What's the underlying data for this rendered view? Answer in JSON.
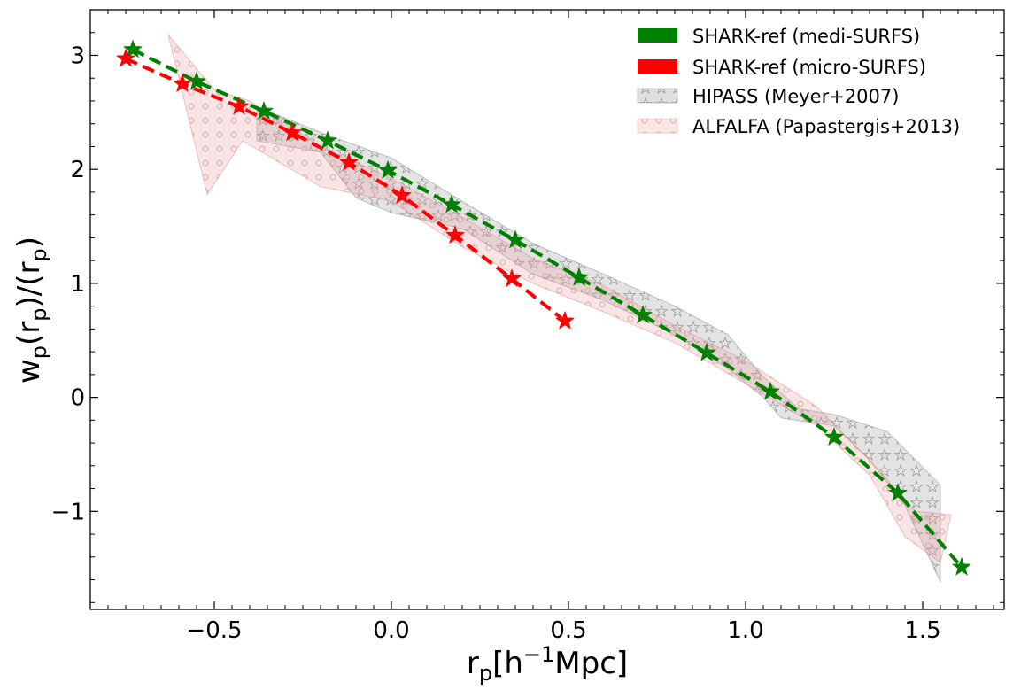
{
  "chart_data": {
    "type": "line",
    "xlabel": {
      "base": "r",
      "sub": "p",
      "open": "[h",
      "sup": "−1",
      "close": "Mpc]"
    },
    "ylabel": {
      "base": "w",
      "sub1": "p",
      "mid": "(r",
      "sub2": "p",
      "mid2": ")/(r",
      "sub3": "p",
      "close": ")"
    },
    "xlim": [
      -0.85,
      1.73
    ],
    "ylim": [
      -1.86,
      3.4
    ],
    "x_ticks": [
      -0.5,
      0.0,
      0.5,
      1.0,
      1.5
    ],
    "x_tick_labels": [
      "−0.5",
      "0.0",
      "0.5",
      "1.0",
      "1.5"
    ],
    "y_ticks": [
      -1,
      0,
      1,
      2,
      3
    ],
    "y_tick_labels": [
      "−1",
      "0",
      "1",
      "2",
      "3"
    ],
    "grid": false,
    "legend_position": "top-right",
    "legend": [
      {
        "label": "SHARK-ref (medi-SURFS)",
        "kind": "solid",
        "color": "#008000"
      },
      {
        "label": "SHARK-ref (micro-SURFS)",
        "kind": "solid",
        "color": "#ff0000"
      },
      {
        "label": "HIPASS (Meyer+2007)",
        "kind": "hatched",
        "color": "#808080"
      },
      {
        "label": "ALFALFA (Papastergis+2013)",
        "kind": "hatched",
        "color": "#e8a0a0"
      }
    ],
    "series": [
      {
        "kind": "line",
        "color": "#008000",
        "marker": "star",
        "x": [
          -0.73,
          -0.55,
          -0.36,
          -0.18,
          -0.01,
          0.17,
          0.35,
          0.53,
          0.71,
          0.89,
          1.07,
          1.25,
          1.43,
          1.61
        ],
        "y": [
          3.05,
          2.77,
          2.51,
          2.25,
          1.99,
          1.69,
          1.38,
          1.05,
          0.72,
          0.39,
          0.05,
          -0.35,
          -0.84,
          -1.49
        ]
      },
      {
        "kind": "line",
        "color": "#ff0000",
        "marker": "star",
        "x": [
          -0.75,
          -0.59,
          -0.43,
          -0.28,
          -0.12,
          0.03,
          0.18,
          0.34,
          0.49
        ],
        "y": [
          2.97,
          2.75,
          2.55,
          2.32,
          2.06,
          1.77,
          1.42,
          1.04,
          0.67
        ]
      },
      {
        "kind": "band",
        "color": "#808080",
        "upper": [
          [
            -0.38,
            2.55
          ],
          [
            -0.18,
            2.3
          ],
          [
            0.0,
            2.1
          ],
          [
            0.2,
            1.72
          ],
          [
            0.4,
            1.35
          ],
          [
            0.6,
            1.08
          ],
          [
            0.8,
            0.8
          ],
          [
            0.95,
            0.55
          ],
          [
            1.05,
            0.18
          ],
          [
            1.15,
            -0.1
          ],
          [
            1.25,
            -0.15
          ],
          [
            1.4,
            -0.3
          ],
          [
            1.55,
            -0.77
          ]
        ],
        "lower": [
          [
            -0.38,
            2.25
          ],
          [
            -0.2,
            2.15
          ],
          [
            -0.1,
            1.75
          ],
          [
            0.0,
            1.62
          ],
          [
            0.2,
            1.48
          ],
          [
            0.4,
            1.08
          ],
          [
            0.6,
            0.85
          ],
          [
            0.8,
            0.55
          ],
          [
            0.95,
            0.25
          ],
          [
            1.05,
            0.0
          ],
          [
            1.1,
            -0.18
          ],
          [
            1.25,
            -0.25
          ],
          [
            1.35,
            -0.55
          ],
          [
            1.45,
            -0.95
          ],
          [
            1.55,
            -1.62
          ]
        ]
      },
      {
        "kind": "band",
        "color": "#e8a0a0",
        "upper": [
          [
            -0.63,
            3.18
          ],
          [
            -0.5,
            2.7
          ],
          [
            -0.4,
            2.6
          ],
          [
            -0.2,
            2.2
          ],
          [
            0.0,
            1.92
          ],
          [
            0.2,
            1.58
          ],
          [
            0.4,
            1.22
          ],
          [
            0.6,
            0.98
          ],
          [
            0.8,
            0.63
          ],
          [
            1.0,
            0.32
          ],
          [
            1.2,
            -0.08
          ],
          [
            1.35,
            -0.55
          ],
          [
            1.48,
            -1.0
          ],
          [
            1.58,
            -1.03
          ]
        ],
        "lower": [
          [
            -0.63,
            3.18
          ],
          [
            -0.52,
            1.78
          ],
          [
            -0.42,
            2.25
          ],
          [
            -0.2,
            1.85
          ],
          [
            0.0,
            1.72
          ],
          [
            0.2,
            1.32
          ],
          [
            0.4,
            1.0
          ],
          [
            0.6,
            0.75
          ],
          [
            0.8,
            0.48
          ],
          [
            1.0,
            0.12
          ],
          [
            1.2,
            -0.25
          ],
          [
            1.35,
            -0.68
          ],
          [
            1.45,
            -1.22
          ],
          [
            1.55,
            -1.45
          ],
          [
            1.58,
            -1.03
          ]
        ]
      }
    ]
  }
}
